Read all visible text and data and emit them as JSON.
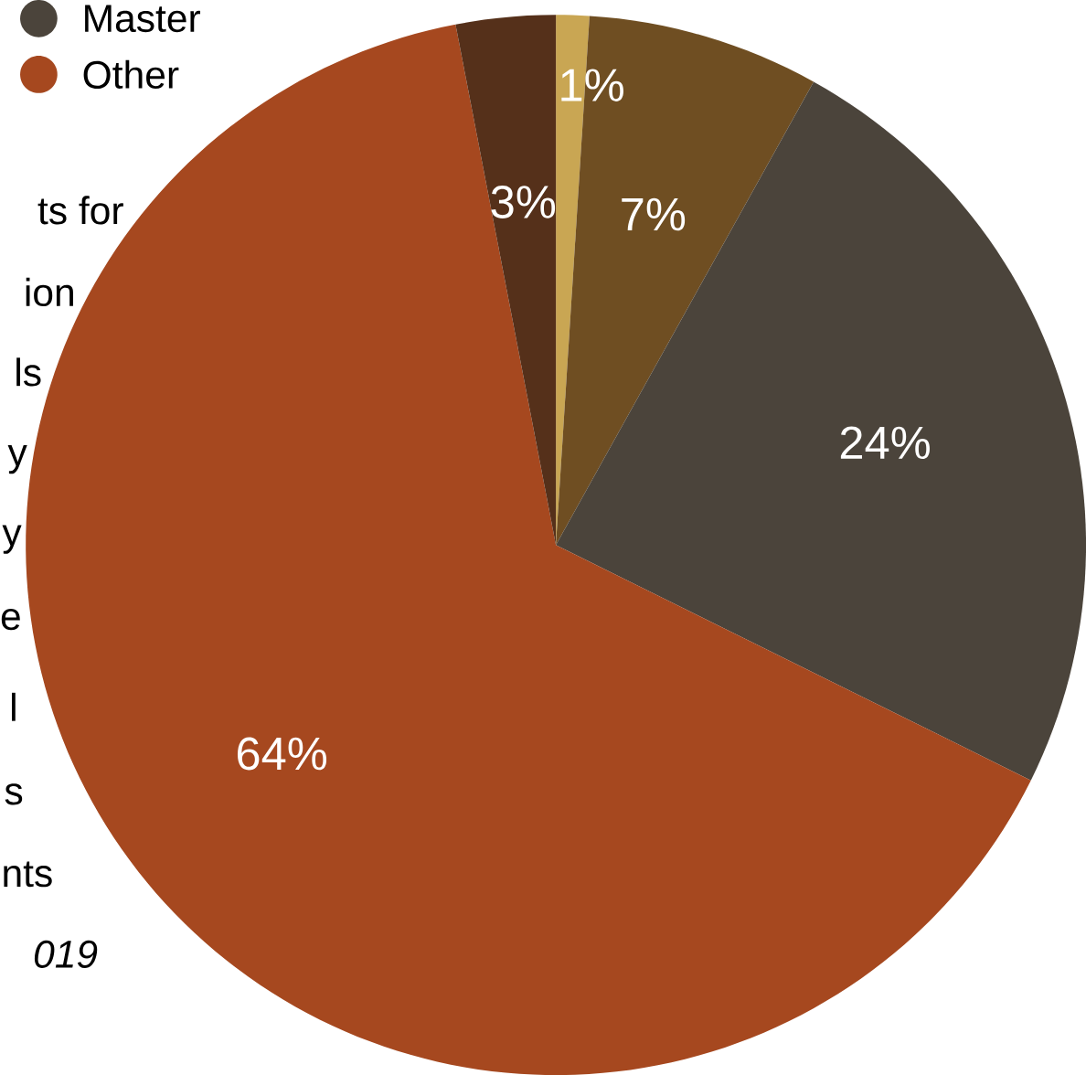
{
  "chart_data": {
    "type": "pie",
    "categories": [
      null,
      null,
      "Master",
      "Other",
      null
    ],
    "values": [
      1,
      7,
      24,
      64,
      3
    ],
    "colors": [
      "#c9a653",
      "#6f4e22",
      "#4b443b",
      "#a6481f",
      "#55301a"
    ],
    "value_labels": [
      "1%",
      "7%",
      "24%",
      "64%",
      "3%"
    ],
    "legend": "top left",
    "annotations": [
      "ts for",
      "ion",
      "ls",
      "y",
      "y",
      "e",
      "l",
      "s",
      "nts",
      "019"
    ]
  }
}
